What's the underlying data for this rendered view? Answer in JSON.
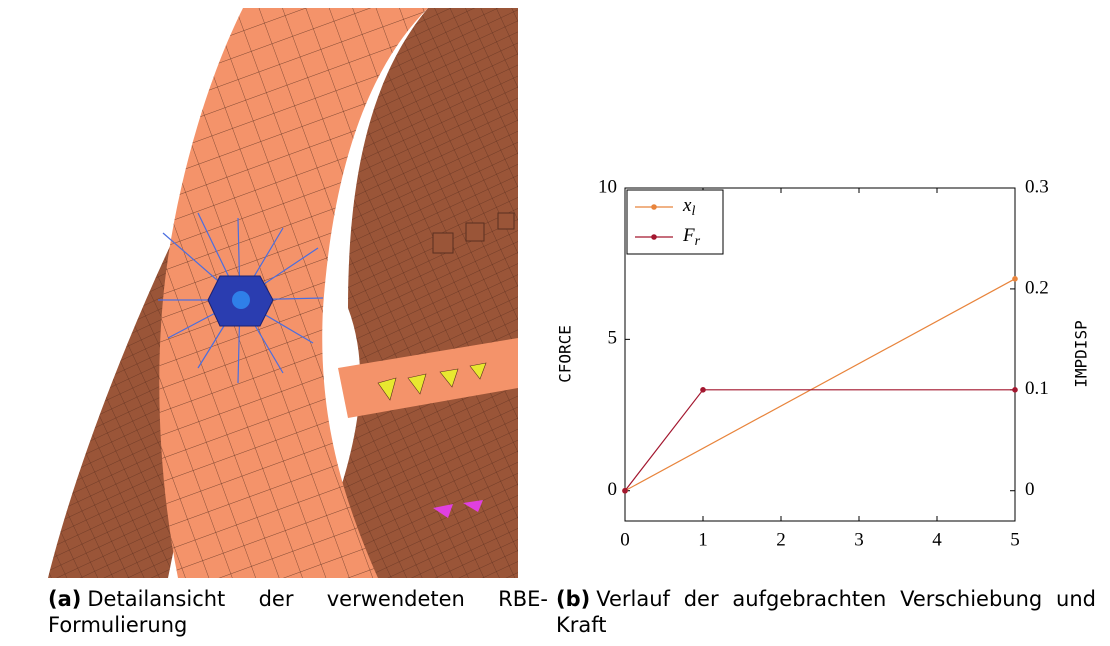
{
  "figure": {
    "panel_a": {
      "label": "(a)",
      "caption": "Detailansicht der verwendeten RBE-Formulierung"
    },
    "panel_b": {
      "label": "(b)",
      "caption": "Verlauf der aufgebrachten Verschiebung und Kraft"
    }
  },
  "chart_data": {
    "type": "line",
    "ylabel": "CFORCE",
    "y2label": "IMPDISP",
    "xlim": [
      0,
      5
    ],
    "xticks": [
      0,
      1,
      2,
      3,
      4,
      5
    ],
    "ylim": [
      -1,
      10
    ],
    "yticks": [
      0,
      5,
      10
    ],
    "y2lim": [
      -0.03,
      0.3
    ],
    "y2ticks": [
      0,
      0.1,
      0.2,
      0.3
    ],
    "legend": "upper left",
    "grid": false,
    "series": [
      {
        "name": "x_l",
        "color": "#e8843c",
        "x": [
          0,
          5
        ],
        "values": [
          0,
          7
        ]
      },
      {
        "name": "F_r",
        "color": "#a3172f",
        "axis": "y2",
        "x": [
          0,
          1,
          5
        ],
        "values": [
          0,
          0.1,
          0.1
        ]
      }
    ]
  }
}
